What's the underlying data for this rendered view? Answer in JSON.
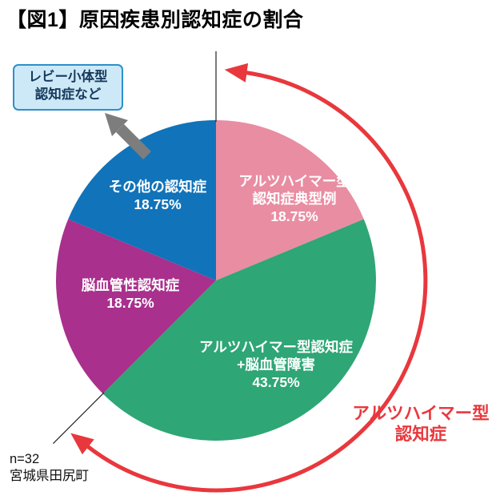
{
  "title": "【図1】原因疾患別認知症の割合",
  "callout": {
    "line1": "レビー小体型",
    "line2": "認知症など"
  },
  "range_annotation": {
    "line1": "アルツハイマー型",
    "line2": "認知症"
  },
  "footnote": {
    "line1": "n=32",
    "line2": "宮城県田尻町"
  },
  "colors": {
    "range_arrow": "#e8383d",
    "callout_arrow": "#7d7d7d",
    "callout_box_bg": "#cde9f7",
    "callout_box_border": "#2e8fcc",
    "boundary_line": "#222222",
    "label_text": "#ffffff"
  },
  "chart_data": {
    "type": "pie",
    "title": "【図1】原因疾患別認知症の割合",
    "unit": "%",
    "start_angle_deg": 0,
    "direction": "clockwise",
    "slices": [
      {
        "label": "アルツハイマー型認知症典型例",
        "value": 18.75,
        "color": "#e98da2",
        "label_lines": [
          "アルツハイマー型",
          "認知症典型例",
          "18.75%"
        ]
      },
      {
        "label": "アルツハイマー型認知症+脳血管障害",
        "value": 43.75,
        "color": "#2ea676",
        "label_lines": [
          "アルツハイマー型認知症",
          "+脳血管障害",
          "43.75%"
        ]
      },
      {
        "label": "脳血管性認知症",
        "value": 18.75,
        "color": "#a9308d",
        "label_lines": [
          "脳血管性認知症",
          "18.75%"
        ]
      },
      {
        "label": "その他の認知症",
        "value": 18.75,
        "color": "#1173b9",
        "label_lines": [
          "その他の認知症",
          "18.75%"
        ]
      }
    ],
    "callout_label": "レビー小体型認知症など",
    "callout_points_to": "その他の認知症",
    "range_annotation": {
      "label": "アルツハイマー型認知症",
      "covers": [
        "アルツハイマー型認知症典型例",
        "アルツハイマー型認知症+脳血管障害"
      ],
      "total_percent": 62.5
    },
    "sample": "n=32",
    "source": "宮城県田尻町"
  }
}
